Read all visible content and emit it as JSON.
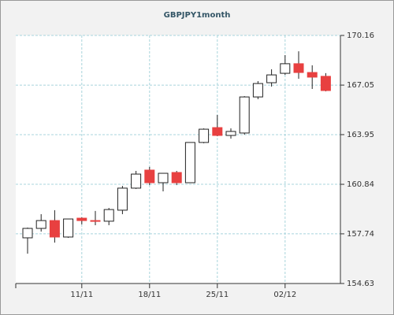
{
  "chart_data": {
    "type": "candlestick",
    "title": "GBPJPY1month",
    "categories": [
      null,
      null,
      null,
      null,
      "11/11",
      null,
      null,
      null,
      null,
      "18/11",
      null,
      null,
      null,
      null,
      "25/11",
      null,
      null,
      null,
      null,
      "02/12",
      null,
      null,
      null
    ],
    "open": [
      157.49,
      158.08,
      158.57,
      157.54,
      158.72,
      158.57,
      158.53,
      159.22,
      160.6,
      161.73,
      160.94,
      161.58,
      160.94,
      163.46,
      164.39,
      163.9,
      164.05,
      166.31,
      167.2,
      167.79,
      168.39,
      167.84,
      167.6
    ],
    "high": [
      158.13,
      158.97,
      159.22,
      158.67,
      158.77,
      159.17,
      159.36,
      160.74,
      161.68,
      161.93,
      161.53,
      161.68,
      163.46,
      164.34,
      165.18,
      164.34,
      166.36,
      167.3,
      168.04,
      168.93,
      169.17,
      168.29,
      167.8
    ],
    "low": [
      156.5,
      157.88,
      157.19,
      157.49,
      158.33,
      158.28,
      158.28,
      158.97,
      160.55,
      160.79,
      160.4,
      160.79,
      160.94,
      163.41,
      163.85,
      163.7,
      163.95,
      166.17,
      166.96,
      167.69,
      167.45,
      166.81,
      166.66
    ],
    "close": [
      158.08,
      158.57,
      157.54,
      158.67,
      158.57,
      158.53,
      159.26,
      160.6,
      161.48,
      160.94,
      161.53,
      160.94,
      163.46,
      164.29,
      163.9,
      164.15,
      166.31,
      167.15,
      167.69,
      168.39,
      167.84,
      167.55,
      166.71
    ],
    "up_color": "#ffffff",
    "down_color": "#e84040",
    "ylim": [
      154.63,
      170.16
    ],
    "yticks": [
      154.63,
      157.74,
      160.84,
      163.95,
      167.05,
      170.16
    ],
    "grid": true
  }
}
